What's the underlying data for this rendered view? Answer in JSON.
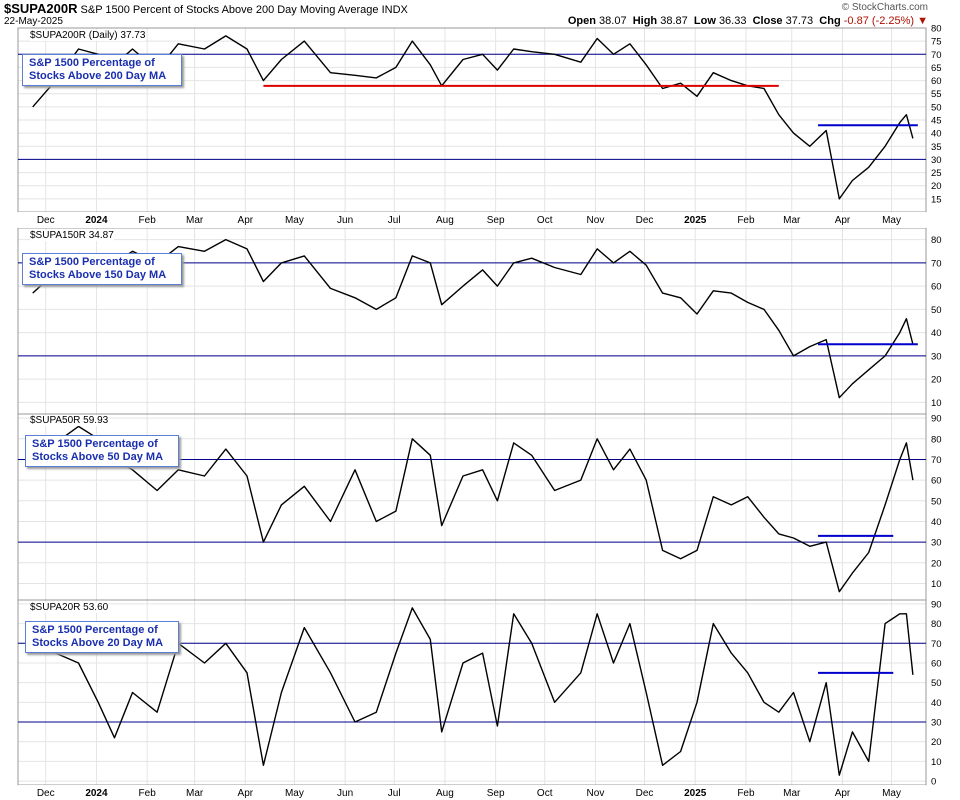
{
  "header": {
    "symbol": "$SUPA200R",
    "description": "S&P 1500 Percent of Stocks Above 200 Day Moving Average",
    "exchange": "INDX",
    "date": "22-May-2025",
    "brand": "© StockCharts.com",
    "open_label": "Open",
    "open": "38.07",
    "high_label": "High",
    "high": "38.87",
    "low_label": "Low",
    "low": "36.33",
    "close_label": "Close",
    "close": "37.73",
    "chg_label": "Chg",
    "chg": "-0.87 (-2.25%)",
    "chg_color": "#b01000"
  },
  "x_axis_labels": [
    "Dec",
    "2024",
    "Feb",
    "Mar",
    "Apr",
    "May",
    "Jun",
    "Jul",
    "Aug",
    "Sep",
    "Oct",
    "Nov",
    "Dec",
    "2025",
    "Feb",
    "Mar",
    "Apr",
    "May"
  ],
  "colors": {
    "line": "#000000",
    "ref_line": "#00008b",
    "red_line": "#dd0000",
    "blue_line": "#0000cc",
    "box_text": "#1a2fb0"
  },
  "chart_data": [
    {
      "type": "line",
      "name": "$SUPA200R (Daily) 37.73",
      "annotation": "S&P 1500 Percentage of Stocks Above 200 Day MA",
      "ylim": [
        10,
        80
      ],
      "y_ticks": [
        80,
        75,
        70,
        65,
        60,
        55,
        50,
        45,
        40,
        35,
        30,
        25,
        20,
        15
      ],
      "ref_lines": [
        70,
        30
      ],
      "hlines": [
        {
          "from": "2024-04-20",
          "to": "2025-03-01",
          "y": 58,
          "color": "red"
        },
        {
          "from": "2025-03-25",
          "to": "2025-05-25",
          "y": 43,
          "color": "blue"
        }
      ],
      "points": [
        [
          "2023-12-01",
          50
        ],
        [
          "2023-12-15",
          60
        ],
        [
          "2023-12-29",
          72
        ],
        [
          "2024-01-10",
          70
        ],
        [
          "2024-01-20",
          66
        ],
        [
          "2024-01-31",
          72
        ],
        [
          "2024-02-15",
          64
        ],
        [
          "2024-02-28",
          74
        ],
        [
          "2024-03-15",
          72
        ],
        [
          "2024-03-28",
          77
        ],
        [
          "2024-04-10",
          72
        ],
        [
          "2024-04-20",
          60
        ],
        [
          "2024-05-01",
          68
        ],
        [
          "2024-05-15",
          75
        ],
        [
          "2024-05-31",
          63
        ],
        [
          "2024-06-15",
          62
        ],
        [
          "2024-06-28",
          61
        ],
        [
          "2024-07-10",
          65
        ],
        [
          "2024-07-20",
          75
        ],
        [
          "2024-07-31",
          66
        ],
        [
          "2024-08-07",
          58
        ],
        [
          "2024-08-20",
          68
        ],
        [
          "2024-09-01",
          70
        ],
        [
          "2024-09-10",
          64
        ],
        [
          "2024-09-20",
          72
        ],
        [
          "2024-10-01",
          71
        ],
        [
          "2024-10-15",
          70
        ],
        [
          "2024-10-31",
          67
        ],
        [
          "2024-11-10",
          76
        ],
        [
          "2024-11-20",
          70
        ],
        [
          "2024-11-30",
          74
        ],
        [
          "2024-12-10",
          66
        ],
        [
          "2024-12-20",
          57
        ],
        [
          "2024-12-31",
          59
        ],
        [
          "2025-01-10",
          54
        ],
        [
          "2025-01-20",
          63
        ],
        [
          "2025-01-31",
          60
        ],
        [
          "2025-02-10",
          58
        ],
        [
          "2025-02-20",
          57
        ],
        [
          "2025-03-01",
          47
        ],
        [
          "2025-03-10",
          40
        ],
        [
          "2025-03-20",
          35
        ],
        [
          "2025-03-30",
          41
        ],
        [
          "2025-04-07",
          15
        ],
        [
          "2025-04-15",
          22
        ],
        [
          "2025-04-25",
          27
        ],
        [
          "2025-05-05",
          35
        ],
        [
          "2025-05-14",
          44
        ],
        [
          "2025-05-18",
          47
        ],
        [
          "2025-05-22",
          38
        ]
      ]
    },
    {
      "type": "line",
      "name": "$SUPA150R 34.87",
      "annotation": "S&P 1500 Percentage of Stocks Above 150 Day MA",
      "ylim": [
        5,
        85
      ],
      "y_ticks": [
        80,
        70,
        60,
        50,
        40,
        30,
        20,
        10
      ],
      "ref_lines": [
        70,
        30
      ],
      "hlines": [
        {
          "from": "2025-03-25",
          "to": "2025-05-25",
          "y": 35,
          "color": "blue"
        }
      ],
      "points": [
        [
          "2023-12-01",
          57
        ],
        [
          "2023-12-15",
          66
        ],
        [
          "2023-12-29",
          74
        ],
        [
          "2024-01-10",
          73
        ],
        [
          "2024-01-20",
          70
        ],
        [
          "2024-01-31",
          75
        ],
        [
          "2024-02-15",
          70
        ],
        [
          "2024-02-28",
          77
        ],
        [
          "2024-03-15",
          75
        ],
        [
          "2024-03-28",
          80
        ],
        [
          "2024-04-10",
          76
        ],
        [
          "2024-04-20",
          62
        ],
        [
          "2024-05-01",
          70
        ],
        [
          "2024-05-15",
          73
        ],
        [
          "2024-05-31",
          59
        ],
        [
          "2024-06-15",
          55
        ],
        [
          "2024-06-28",
          50
        ],
        [
          "2024-07-10",
          55
        ],
        [
          "2024-07-20",
          73
        ],
        [
          "2024-07-31",
          70
        ],
        [
          "2024-08-07",
          52
        ],
        [
          "2024-08-20",
          60
        ],
        [
          "2024-09-01",
          67
        ],
        [
          "2024-09-10",
          60
        ],
        [
          "2024-09-20",
          70
        ],
        [
          "2024-10-01",
          72
        ],
        [
          "2024-10-15",
          68
        ],
        [
          "2024-10-31",
          65
        ],
        [
          "2024-11-10",
          76
        ],
        [
          "2024-11-20",
          70
        ],
        [
          "2024-11-30",
          75
        ],
        [
          "2024-12-10",
          69
        ],
        [
          "2024-12-20",
          57
        ],
        [
          "2024-12-31",
          55
        ],
        [
          "2025-01-10",
          48
        ],
        [
          "2025-01-20",
          58
        ],
        [
          "2025-01-31",
          57
        ],
        [
          "2025-02-10",
          53
        ],
        [
          "2025-02-20",
          50
        ],
        [
          "2025-03-01",
          41
        ],
        [
          "2025-03-10",
          30
        ],
        [
          "2025-03-20",
          34
        ],
        [
          "2025-03-30",
          37
        ],
        [
          "2025-04-07",
          12
        ],
        [
          "2025-04-15",
          18
        ],
        [
          "2025-04-25",
          24
        ],
        [
          "2025-05-05",
          30
        ],
        [
          "2025-05-14",
          40
        ],
        [
          "2025-05-18",
          46
        ],
        [
          "2025-05-22",
          35
        ]
      ]
    },
    {
      "type": "line",
      "name": "$SUPA50R 59.93",
      "annotation": "S&P 1500 Percentage of Stocks Above 50 Day MA",
      "ylim": [
        2,
        92
      ],
      "y_ticks": [
        90,
        80,
        70,
        60,
        50,
        40,
        30,
        20,
        10
      ],
      "ref_lines": [
        70,
        30
      ],
      "hlines": [
        {
          "from": "2025-03-25",
          "to": "2025-05-10",
          "y": 33,
          "color": "blue"
        }
      ],
      "points": [
        [
          "2023-12-01",
          70
        ],
        [
          "2023-12-15",
          78
        ],
        [
          "2023-12-29",
          86
        ],
        [
          "2024-01-10",
          80
        ],
        [
          "2024-01-20",
          70
        ],
        [
          "2024-01-31",
          65
        ],
        [
          "2024-02-15",
          55
        ],
        [
          "2024-02-28",
          65
        ],
        [
          "2024-03-15",
          62
        ],
        [
          "2024-03-28",
          75
        ],
        [
          "2024-04-10",
          62
        ],
        [
          "2024-04-20",
          30
        ],
        [
          "2024-05-01",
          48
        ],
        [
          "2024-05-15",
          57
        ],
        [
          "2024-05-31",
          40
        ],
        [
          "2024-06-15",
          65
        ],
        [
          "2024-06-28",
          40
        ],
        [
          "2024-07-10",
          45
        ],
        [
          "2024-07-20",
          80
        ],
        [
          "2024-07-31",
          72
        ],
        [
          "2024-08-07",
          38
        ],
        [
          "2024-08-20",
          62
        ],
        [
          "2024-09-01",
          65
        ],
        [
          "2024-09-10",
          50
        ],
        [
          "2024-09-20",
          78
        ],
        [
          "2024-10-01",
          72
        ],
        [
          "2024-10-15",
          55
        ],
        [
          "2024-10-31",
          60
        ],
        [
          "2024-11-10",
          80
        ],
        [
          "2024-11-20",
          65
        ],
        [
          "2024-11-30",
          75
        ],
        [
          "2024-12-10",
          60
        ],
        [
          "2024-12-20",
          26
        ],
        [
          "2024-12-31",
          22
        ],
        [
          "2025-01-10",
          26
        ],
        [
          "2025-01-20",
          52
        ],
        [
          "2025-01-31",
          48
        ],
        [
          "2025-02-10",
          52
        ],
        [
          "2025-02-20",
          42
        ],
        [
          "2025-03-01",
          34
        ],
        [
          "2025-03-10",
          32
        ],
        [
          "2025-03-20",
          28
        ],
        [
          "2025-03-30",
          30
        ],
        [
          "2025-04-07",
          6
        ],
        [
          "2025-04-15",
          15
        ],
        [
          "2025-04-25",
          25
        ],
        [
          "2025-05-05",
          48
        ],
        [
          "2025-05-14",
          70
        ],
        [
          "2025-05-18",
          78
        ],
        [
          "2025-05-22",
          60
        ]
      ]
    },
    {
      "type": "line",
      "name": "$SUPA20R 53.60",
      "annotation": "S&P 1500 Percentage of Stocks Above 20 Day MA",
      "ylim": [
        -2,
        92
      ],
      "y_ticks": [
        90,
        80,
        70,
        60,
        50,
        40,
        30,
        20,
        10,
        0
      ],
      "ref_lines": [
        70,
        30
      ],
      "hlines": [
        {
          "from": "2025-03-25",
          "to": "2025-05-10",
          "y": 55,
          "color": "blue"
        }
      ],
      "points": [
        [
          "2023-12-01",
          75
        ],
        [
          "2023-12-15",
          65
        ],
        [
          "2023-12-29",
          60
        ],
        [
          "2024-01-10",
          40
        ],
        [
          "2024-01-20",
          22
        ],
        [
          "2024-01-31",
          45
        ],
        [
          "2024-02-15",
          35
        ],
        [
          "2024-02-28",
          70
        ],
        [
          "2024-03-15",
          60
        ],
        [
          "2024-03-28",
          70
        ],
        [
          "2024-04-10",
          55
        ],
        [
          "2024-04-20",
          8
        ],
        [
          "2024-05-01",
          45
        ],
        [
          "2024-05-15",
          78
        ],
        [
          "2024-05-31",
          55
        ],
        [
          "2024-06-15",
          30
        ],
        [
          "2024-06-28",
          35
        ],
        [
          "2024-07-10",
          65
        ],
        [
          "2024-07-20",
          88
        ],
        [
          "2024-07-31",
          72
        ],
        [
          "2024-08-07",
          25
        ],
        [
          "2024-08-20",
          60
        ],
        [
          "2024-09-01",
          65
        ],
        [
          "2024-09-10",
          28
        ],
        [
          "2024-09-20",
          85
        ],
        [
          "2024-10-01",
          70
        ],
        [
          "2024-10-15",
          40
        ],
        [
          "2024-10-31",
          55
        ],
        [
          "2024-11-10",
          85
        ],
        [
          "2024-11-20",
          60
        ],
        [
          "2024-11-30",
          80
        ],
        [
          "2024-12-10",
          45
        ],
        [
          "2024-12-20",
          8
        ],
        [
          "2024-12-31",
          15
        ],
        [
          "2025-01-10",
          40
        ],
        [
          "2025-01-20",
          80
        ],
        [
          "2025-01-31",
          65
        ],
        [
          "2025-02-10",
          55
        ],
        [
          "2025-02-20",
          40
        ],
        [
          "2025-03-01",
          35
        ],
        [
          "2025-03-10",
          45
        ],
        [
          "2025-03-20",
          20
        ],
        [
          "2025-03-30",
          50
        ],
        [
          "2025-04-07",
          3
        ],
        [
          "2025-04-15",
          25
        ],
        [
          "2025-04-25",
          10
        ],
        [
          "2025-05-05",
          80
        ],
        [
          "2025-05-14",
          85
        ],
        [
          "2025-05-18",
          85
        ],
        [
          "2025-05-22",
          54
        ]
      ]
    }
  ]
}
